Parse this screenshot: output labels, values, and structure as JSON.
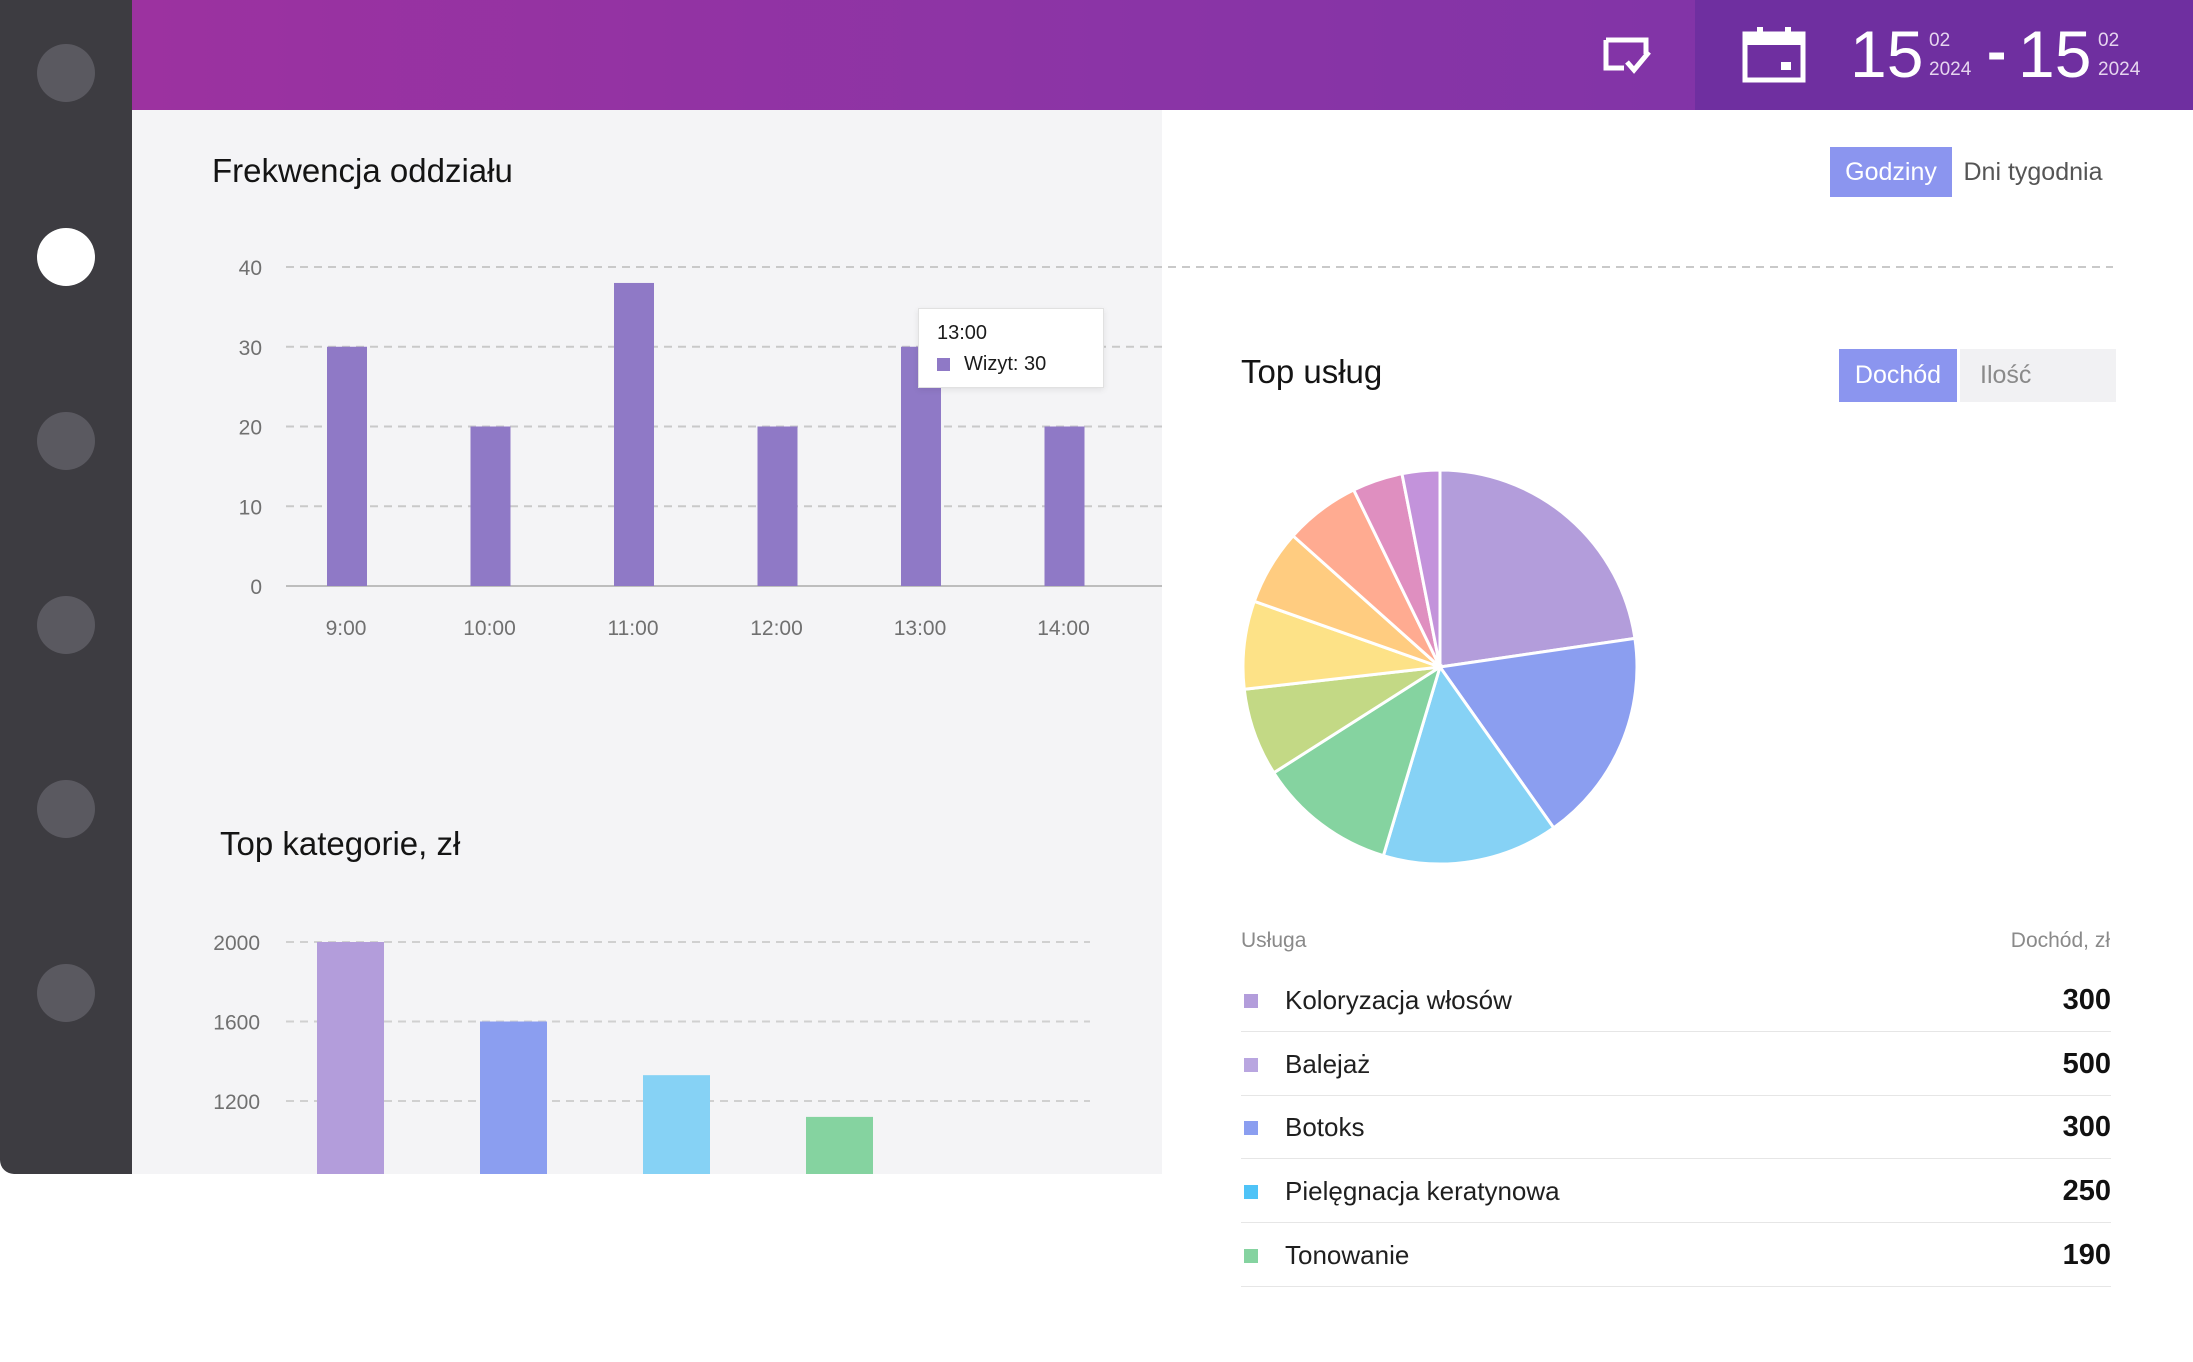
{
  "header": {
    "date_from": {
      "day": "15",
      "month": "02",
      "year": "2024"
    },
    "date_separator": "-",
    "date_to": {
      "day": "15",
      "month": "02",
      "year": "2024"
    }
  },
  "sidebar": {
    "items": [
      "dot",
      "dot-active",
      "dot",
      "dot",
      "dot",
      "dot"
    ]
  },
  "attendance": {
    "title": "Frekwencja oddziału",
    "toggle": {
      "active": "Godziny",
      "inactive": "Dni tygodnia"
    },
    "tooltip": {
      "title": "13:00",
      "label": "Wizyt: 30"
    }
  },
  "categories": {
    "title": "Top kategorie, zł"
  },
  "services": {
    "title": "Top usług",
    "toggle": {
      "active": "Dochód",
      "inactive": "Ilość"
    },
    "table_headers": [
      "Usługa",
      "Dochód, zł"
    ],
    "rows": [
      {
        "name": "Koloryzacja włosów",
        "value": "300",
        "color": "#b39ddb"
      },
      {
        "name": "Balejaż",
        "value": "500",
        "color": "#b9a6e0"
      },
      {
        "name": "Botoks",
        "value": "300",
        "color": "#8b9ef0"
      },
      {
        "name": "Pielęgnacja keratynowa",
        "value": "250",
        "color": "#4fc3f7"
      },
      {
        "name": "Tonowanie",
        "value": "190",
        "color": "#85d3a0"
      }
    ]
  },
  "chart_data": [
    {
      "type": "bar",
      "categories": [
        "9:00",
        "10:00",
        "11:00",
        "12:00",
        "13:00",
        "14:00"
      ],
      "values": [
        30,
        20,
        38,
        20,
        30,
        20
      ],
      "ylim": [
        0,
        40
      ],
      "yticks": [
        "0",
        "10",
        "20",
        "30",
        "40"
      ],
      "color": "#8f79c6",
      "grid": true
    },
    {
      "type": "bar",
      "values": [
        2000,
        1600,
        1330,
        1120
      ],
      "colors": [
        "#b39ddb",
        "#8b9ef0",
        "#86d2f5",
        "#85d3a0"
      ],
      "ylim": [
        1000,
        2100
      ],
      "yticks": [
        "1200",
        "1600",
        "2000"
      ],
      "grid": true
    },
    {
      "type": "pie",
      "values": [
        22,
        17,
        14,
        11,
        7,
        7,
        6,
        6,
        4,
        3
      ],
      "colors": [
        "#b39ddb",
        "#8b9ef0",
        "#86d2f5",
        "#85d3a0",
        "#c3d985",
        "#fde287",
        "#ffcc80",
        "#ffab91",
        "#df8fc0",
        "#c393db"
      ]
    }
  ]
}
